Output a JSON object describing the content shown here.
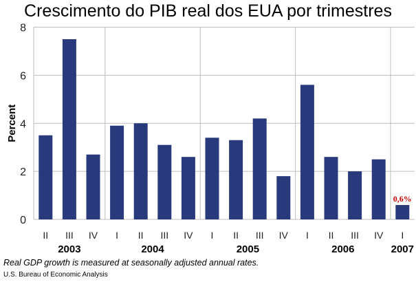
{
  "chart_data": {
    "type": "bar",
    "title": "Crescimento do PIB real dos EUA por trimestres",
    "ylabel": "Percent",
    "xlabel": "",
    "ylim": [
      0,
      8
    ],
    "yticks": [
      0,
      2,
      4,
      6,
      8
    ],
    "grid": true,
    "categories": [
      "II",
      "III",
      "IV",
      "I",
      "II",
      "III",
      "IV",
      "I",
      "II",
      "III",
      "IV",
      "I",
      "II",
      "III",
      "IV",
      "I"
    ],
    "years": [
      {
        "label": "2003",
        "start": 0,
        "end": 2
      },
      {
        "label": "2004",
        "start": 3,
        "end": 6
      },
      {
        "label": "2005",
        "start": 7,
        "end": 10
      },
      {
        "label": "2006",
        "start": 11,
        "end": 14
      },
      {
        "label": "2007",
        "start": 15,
        "end": 15
      }
    ],
    "values": [
      3.5,
      7.5,
      2.7,
      3.9,
      4.0,
      3.1,
      2.6,
      3.4,
      3.3,
      4.2,
      1.8,
      5.6,
      2.6,
      2.0,
      2.5,
      0.6
    ],
    "annotations": [
      {
        "index": 15,
        "text": "0,6%",
        "color": "#cc0000"
      }
    ],
    "bar_color": "#283a7c"
  },
  "footnote": "Real GDP growth is measured at seasonally adjusted annual rates.",
  "source": "U.S. Bureau of Economic Analysis"
}
